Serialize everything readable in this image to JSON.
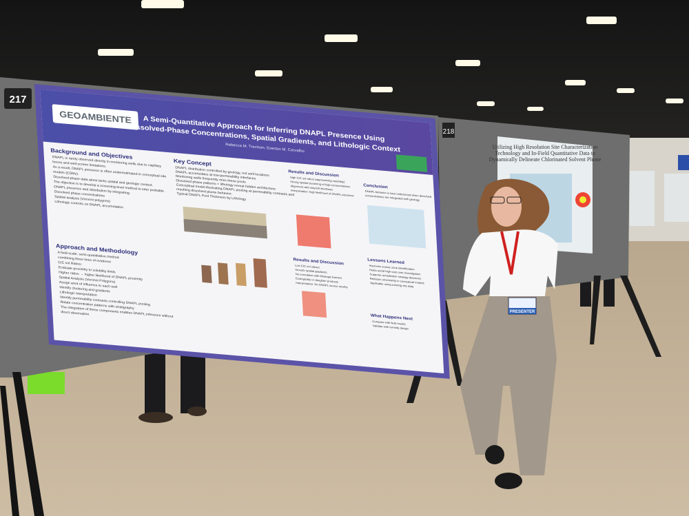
{
  "booth_numbers": [
    "217",
    "218"
  ],
  "poster": {
    "logo": "GEOAMBIENTE",
    "title_lines": [
      "A Semi-Quantitative Approach for Inferring DNAPL Presence Using",
      "Dissolved-Phase Concentrations, Spatial Gradients, and Lithologic Context"
    ],
    "authors": "Rebecca M. Trevisan, Everton M. Carvalho",
    "sections": [
      {
        "heading": "Background and Objectives",
        "lines": [
          "DNAPL is rarely observed directly in monitoring wells due to capillary",
          "forces and well-screen limitations.",
          "As a result, DNAPL presence is often underestimated in conceptual site",
          "models (CSMs).",
          "Dissolved-phase data alone lacks spatial and geologic context.",
          "The objective is to develop a screening-level method to infer probable",
          "DNAPL presence and distribution by integrating:",
          "Dissolved phase concentrations",
          "Spatial analysis (Voronoi polygons)",
          "Lithologic controls on DNAPL accumulation"
        ]
      },
      {
        "heading": "Approach and Methodology",
        "lines": [
          "A field-scale, semi-quantitative method",
          "combining three lines of evidence",
          "C/C sol Ratios:",
          "Evaluate proximity to solubility limits",
          "Higher ratios → higher likelihood of DNAPL proximity",
          "Spatial Analysis (Voronoi Polygons)",
          "Assign area of influence to each well",
          "Identify clustering and gradients",
          "Lithologic Interpretation",
          "Identify permeability contrasts controlling DNAPL pooling",
          "Relate concentration patterns with stratigraphy",
          "The integration of these components enables DNAPL inference without",
          "direct observation"
        ]
      },
      {
        "heading": "Key Concept",
        "lines": [
          "DNAPL distribution controlled by geology, not well locations",
          "DNAPL accumulates at low-permeability interfaces",
          "Monitoring wells frequently miss these pools",
          "Dissolved phase patterns + lithology reveal hidden architecture",
          "Conceptual model illustrating DNAPL pooling at permeability contrasts and",
          "resulting dissolved plume behavior.",
          "Typical DNAPL Pool Thickness by Lithology"
        ]
      },
      {
        "heading": "Results and Discussion",
        "lines": [
          "High C/C sol ratios (approaching solubility)",
          "Strong spatial clustering of high concentrations",
          "Alignment with clay/silt interfaces",
          "Interpretation: high likelihood of DNAPL presence"
        ]
      },
      {
        "heading": "Results and Discussion",
        "lines": [
          "Low C/C sol values",
          "Smooth spatial gradients",
          "No correlation with lithologic barriers",
          "Ecologically or daughter products",
          "Interpretation: No DNAPL source nearby"
        ]
      },
      {
        "heading": "Conclusion",
        "lines": [
          "DNAPL behavior is best understood when dissolved",
          "concentrations are integrated with geology"
        ]
      },
      {
        "heading": "Lessons Learned",
        "lines": [
          "Improves source zone identification",
          "Helps avoid high-cost over-investigation",
          "Supports remediation strategy decisions",
          "Reduces uncertainty in conceptual models",
          "Applicable using existing site data"
        ]
      },
      {
        "heading": "What Happens Next",
        "lines": [
          "Compare with field results",
          "Validate with remedy design"
        ]
      }
    ]
  },
  "neighbor_poster": {
    "title_lines": [
      "Utilizing High Resolution Site Characterization",
      "Technology and In-Field Quantitative Data to",
      "Dynamically Delineate Chlorinated Solvent Plume"
    ]
  },
  "badge": "PRESENTER"
}
